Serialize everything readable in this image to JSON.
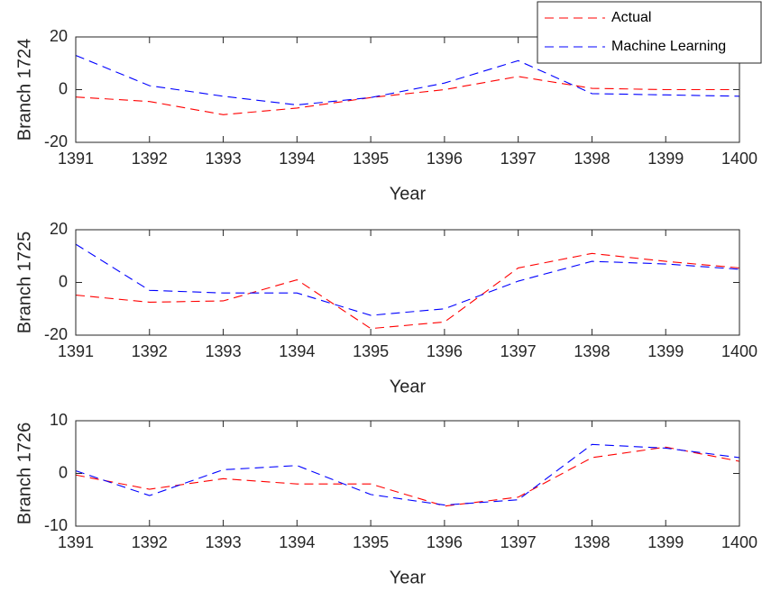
{
  "chart_data": [
    {
      "type": "line",
      "ylabel": "Branch 1724",
      "xlabel": "Year",
      "x": [
        1391,
        1392,
        1393,
        1394,
        1395,
        1396,
        1397,
        1398,
        1399,
        1400
      ],
      "xlim": [
        1391,
        1400
      ],
      "xticks": [
        1391,
        1392,
        1393,
        1394,
        1395,
        1396,
        1397,
        1398,
        1399,
        1400
      ],
      "ylim": [
        -20,
        20
      ],
      "yticks": [
        -20,
        0,
        20
      ],
      "legend": "upper right",
      "series": [
        {
          "name": "Actual",
          "color": "#ff0000",
          "values": [
            -2.8,
            -4.5,
            -9.5,
            -7,
            -3,
            0,
            5,
            0.5,
            0,
            0
          ]
        },
        {
          "name": "Machine Learning",
          "color": "#0000ff",
          "values": [
            13,
            1.5,
            -2.5,
            -5.8,
            -3,
            2.5,
            11,
            -1.5,
            -2,
            -2.5
          ]
        }
      ]
    },
    {
      "type": "line",
      "ylabel": "Branch 1725",
      "xlabel": "Year",
      "x": [
        1391,
        1392,
        1393,
        1394,
        1395,
        1396,
        1397,
        1398,
        1399,
        1400
      ],
      "xlim": [
        1391,
        1400
      ],
      "xticks": [
        1391,
        1392,
        1393,
        1394,
        1395,
        1396,
        1397,
        1398,
        1399,
        1400
      ],
      "ylim": [
        -20,
        20
      ],
      "yticks": [
        -20,
        0,
        20
      ],
      "series": [
        {
          "color": "#ff0000",
          "values": [
            -4.8,
            -7.5,
            -7,
            1,
            -17.5,
            -15,
            5.5,
            11,
            8,
            5.5
          ]
        },
        {
          "color": "#0000ff",
          "values": [
            14.5,
            -3,
            -4,
            -4,
            -12.5,
            -10,
            0.5,
            8,
            7,
            5
          ]
        }
      ]
    },
    {
      "type": "line",
      "ylabel": "Branch 1726",
      "xlabel": "Year",
      "x": [
        1391,
        1392,
        1393,
        1394,
        1395,
        1396,
        1397,
        1398,
        1399,
        1400
      ],
      "xlim": [
        1391,
        1400
      ],
      "xticks": [
        1391,
        1392,
        1393,
        1394,
        1395,
        1396,
        1397,
        1398,
        1399,
        1400
      ],
      "ylim": [
        -10,
        10
      ],
      "yticks": [
        -10,
        0,
        10
      ],
      "series": [
        {
          "color": "#ff0000",
          "values": [
            -0.3,
            -3,
            -1,
            -2,
            -2,
            -6.2,
            -4.5,
            3,
            5,
            2.3
          ]
        },
        {
          "color": "#0000ff",
          "values": [
            0.5,
            -4.2,
            0.7,
            1.5,
            -4,
            -6,
            -5,
            5.5,
            4.8,
            3
          ]
        }
      ]
    }
  ]
}
